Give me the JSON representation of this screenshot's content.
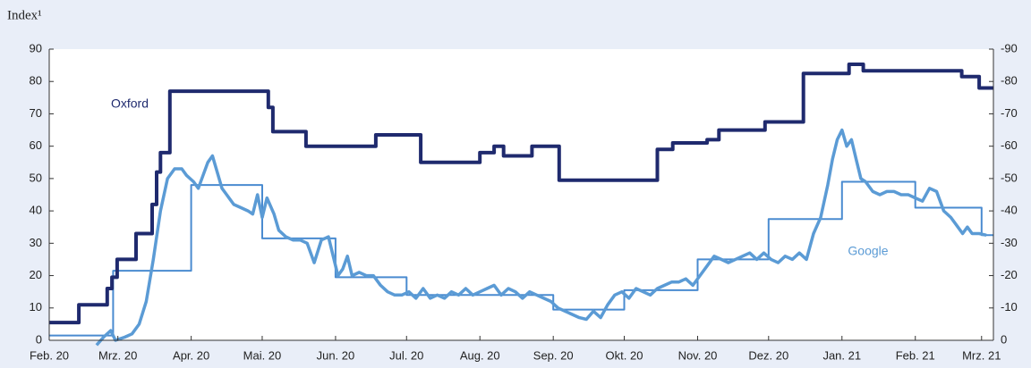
{
  "chart_data": {
    "type": "line",
    "title": "Index¹",
    "xlim": [
      0,
      399
    ],
    "xticks": [
      {
        "value": 0,
        "label": "Feb. 20"
      },
      {
        "value": 29,
        "label": "Mrz. 20"
      },
      {
        "value": 60,
        "label": "Apr. 20"
      },
      {
        "value": 90,
        "label": "Mai. 20"
      },
      {
        "value": 121,
        "label": "Jun. 20"
      },
      {
        "value": 151,
        "label": "Jul. 20"
      },
      {
        "value": 182,
        "label": "Aug. 20"
      },
      {
        "value": 213,
        "label": "Sep. 20"
      },
      {
        "value": 243,
        "label": "Okt. 20"
      },
      {
        "value": 274,
        "label": "Nov. 20"
      },
      {
        "value": 304,
        "label": "Dez. 20"
      },
      {
        "value": 335,
        "label": "Jan. 21"
      },
      {
        "value": 366,
        "label": "Feb. 21"
      },
      {
        "value": 394,
        "label": "Mrz. 21"
      }
    ],
    "ylim": [
      0,
      90
    ],
    "yticks": [
      0,
      10,
      20,
      30,
      40,
      50,
      60,
      70,
      80,
      90
    ],
    "y2lim": [
      0,
      -90
    ],
    "y2ticks": [
      0,
      -10,
      -20,
      -30,
      -40,
      -50,
      -60,
      -70,
      -80,
      -90
    ],
    "series": [
      {
        "name": "Oxford",
        "color": "#1f2a6e",
        "width": 4,
        "x": [
          0,
          12.5,
          12.5,
          24.5,
          24.5,
          26.5,
          26.5,
          28.7,
          28.7,
          36.7,
          36.7,
          43.5,
          43.5,
          45.4,
          45.4,
          47,
          47,
          51,
          51,
          92.6,
          92.6,
          94.5,
          94.5,
          108.5,
          108.5,
          138,
          138,
          157,
          157,
          182,
          182,
          188,
          188,
          192,
          192,
          204,
          204,
          215.5,
          215.5,
          257,
          257,
          263.5,
          263.5,
          278,
          278,
          283,
          283,
          302.5,
          302.5,
          318.7,
          318.7,
          338,
          338,
          344,
          344,
          385.6,
          385.6,
          393,
          393,
          399
        ],
        "values": [
          5.5,
          5.5,
          11,
          11,
          16,
          16,
          19.5,
          19.5,
          25,
          25,
          33,
          33,
          42,
          42,
          52,
          52,
          58,
          58,
          77,
          77,
          72,
          72,
          64.5,
          64.5,
          60,
          60,
          63.5,
          63.5,
          55,
          55,
          58,
          58,
          60,
          60,
          57,
          57,
          60,
          60,
          49.5,
          49.5,
          59,
          59,
          61,
          61,
          62,
          62,
          65,
          65,
          67.5,
          67.5,
          82.5,
          82.5,
          85.3,
          85.3,
          83.3,
          83.3,
          81.5,
          81.5,
          78,
          78
        ]
      },
      {
        "name": "Google",
        "color": "#5b9bd5",
        "width": 3.5,
        "x": [
          20,
          23,
          26,
          28,
          32,
          35,
          38,
          41,
          44,
          47,
          50,
          53,
          56,
          58,
          61,
          63,
          65,
          67,
          69,
          71,
          73,
          75,
          78,
          81,
          84,
          86,
          88,
          90,
          92,
          95,
          97,
          100,
          103,
          106,
          109,
          112,
          115,
          118,
          120,
          122,
          124,
          126,
          128,
          131,
          134,
          137,
          140,
          143,
          146,
          149,
          152,
          155,
          158,
          161,
          164,
          167,
          170,
          173,
          176,
          179,
          182,
          185,
          188,
          191,
          194,
          197,
          200,
          203,
          206,
          209,
          212,
          215,
          218,
          221,
          224,
          227,
          230,
          233,
          236,
          239,
          242,
          245,
          248,
          251,
          254,
          257,
          260,
          263,
          266,
          269,
          272,
          275,
          278,
          281,
          284,
          287,
          290,
          293,
          296,
          299,
          302,
          305,
          308,
          311,
          314,
          317,
          320,
          323,
          326,
          329,
          331,
          333,
          335,
          337,
          339,
          341,
          343,
          345,
          348,
          351,
          354,
          357,
          360,
          363,
          366,
          369,
          372,
          375,
          378,
          381,
          384,
          386,
          388,
          390,
          393,
          396
        ],
        "values": [
          -1.5,
          1,
          3,
          0,
          1,
          2,
          5,
          12,
          25,
          40,
          50,
          53,
          53,
          51,
          49,
          47,
          51,
          55,
          57,
          52,
          47,
          45,
          42,
          41,
          40,
          39,
          45,
          38,
          44,
          39,
          34,
          32,
          31,
          31,
          30,
          24,
          31,
          32,
          26,
          20,
          22,
          26,
          20,
          21,
          20,
          20,
          17,
          15,
          14,
          14,
          15,
          13,
          16,
          13,
          14,
          13,
          15,
          14,
          16,
          14,
          15,
          16,
          17,
          14,
          16,
          15,
          13,
          15,
          14,
          13,
          12,
          10,
          9,
          8,
          7,
          6.5,
          9,
          7,
          11,
          14,
          15,
          13,
          16,
          15,
          14,
          16,
          17,
          18,
          18,
          19,
          17,
          20,
          23,
          26,
          25,
          24,
          25,
          26,
          27,
          25,
          27,
          25,
          24,
          26,
          25,
          27,
          25,
          33,
          38,
          48,
          56,
          62,
          65,
          60,
          62,
          56,
          50,
          49,
          46,
          45,
          46,
          46,
          45,
          45,
          44,
          43,
          47,
          46,
          40,
          38,
          35,
          33,
          35,
          33,
          33,
          32.5
        ]
      },
      {
        "color": "#4a8bd0",
        "width": 2,
        "x": [
          0,
          27,
          27,
          60,
          60,
          90,
          90,
          121,
          121,
          151,
          151,
          213,
          213,
          243,
          243,
          274,
          274,
          304,
          304,
          335,
          335,
          366,
          366,
          394,
          394,
          399
        ],
        "values": [
          1.5,
          1.5,
          21.5,
          21.5,
          48,
          48,
          31.5,
          31.5,
          19.5,
          19.5,
          14,
          14,
          9.5,
          9.5,
          15.5,
          15.5,
          25,
          25,
          37.5,
          37.5,
          49,
          49,
          41,
          41,
          32.5,
          32.5
        ]
      }
    ]
  }
}
